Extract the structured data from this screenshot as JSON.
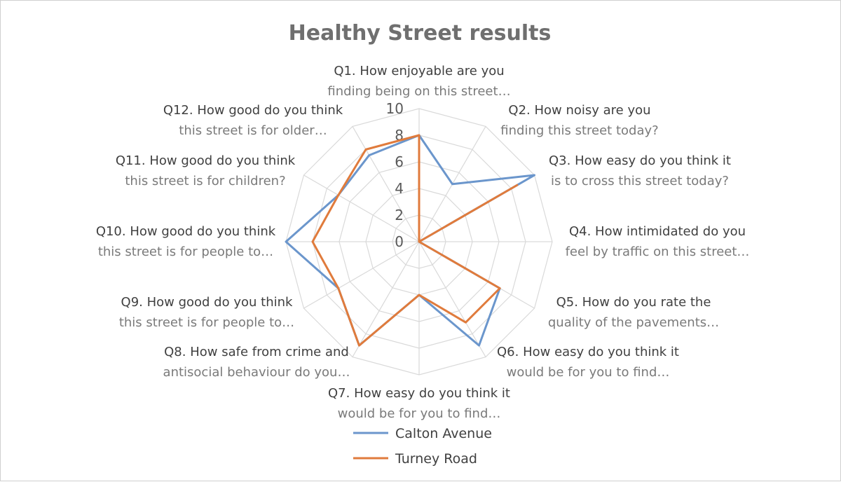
{
  "chart_data": {
    "type": "radar",
    "title": "Healthy Street results",
    "rmin": 0,
    "rmax": 10,
    "ticks": [
      "0",
      "2",
      "4",
      "6",
      "8",
      "10"
    ],
    "grid": true,
    "legend_position": "bottom",
    "categories": [
      [
        "Q1. How enjoyable are you",
        "finding being on this street…"
      ],
      [
        "Q2. How noisy are you",
        "finding this street today?"
      ],
      [
        "Q3. How easy do you think it",
        "is to cross this street today?"
      ],
      [
        "Q4. How intimidated do you",
        "feel by traffic on this street…"
      ],
      [
        "Q5. How do you rate the",
        "quality of the pavements…"
      ],
      [
        "Q6. How easy do you think it",
        "would be for you to find…"
      ],
      [
        "Q7. How easy do you think it",
        "would be for you to find…"
      ],
      [
        "Q8. How safe from crime and",
        "antisocial behaviour do you…"
      ],
      [
        "Q9. How good do you think",
        "this street is for people to…"
      ],
      [
        "Q10. How good do you think",
        "this street is for people to…"
      ],
      [
        "Q11. How good do you think",
        "this street is for children?"
      ],
      [
        "Q12. How good do you think",
        "this street is for older…"
      ]
    ],
    "series": [
      {
        "name": "Calton Avenue",
        "color": "#6b96cc",
        "values": [
          8,
          5,
          10,
          0,
          7,
          9,
          4,
          9,
          7,
          10,
          7,
          7.5
        ]
      },
      {
        "name": "Turney Road",
        "color": "#e07b3c",
        "values": [
          8,
          0,
          8.5,
          0,
          7,
          7,
          4,
          9,
          7,
          8,
          7,
          8
        ]
      }
    ]
  }
}
